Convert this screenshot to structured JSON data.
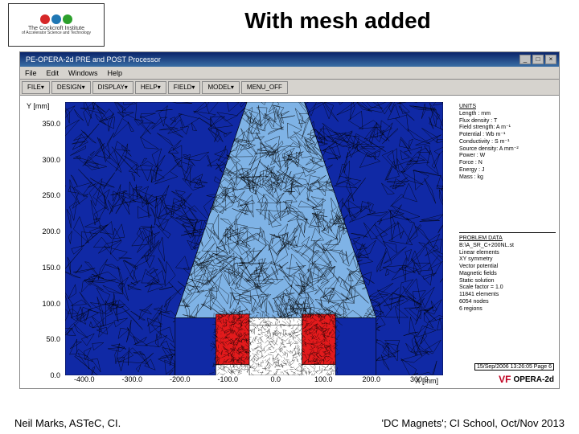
{
  "slide": {
    "title": "With mesh added",
    "footer_left": "Neil Marks, ASTeC, CI.",
    "footer_right": "'DC Magnets'; CI School, Oct/Nov 2013",
    "institute_line1": "The Cockcroft Institute",
    "institute_line2": "of Accelerator Science and Technology"
  },
  "window": {
    "title": "PE-OPERA-2d PRE and POST Processor",
    "menus": [
      "File",
      "Edit",
      "Windows",
      "Help"
    ],
    "toolbar": [
      "FILE▾",
      "DESIGN▾",
      "DISPLAY▾",
      "HELP▾",
      "FIELD▾",
      "MODEL▾",
      "MENU_OFF"
    ],
    "win_buttons": [
      "_",
      "□",
      "×"
    ]
  },
  "axes": {
    "y_label": "Y [mm]",
    "x_label": "X [mm]",
    "y_ticks": [
      "350.0",
      "300.0",
      "250.0",
      "200.0",
      "150.0",
      "100.0",
      "50.0",
      "0.0"
    ],
    "x_ticks": [
      "-400.0",
      "-300.0",
      "-200.0",
      "-100.0",
      "0.0",
      "100.0",
      "200.0",
      "300.0"
    ],
    "ylim": [
      0,
      380
    ],
    "xlim": [
      -440,
      350
    ]
  },
  "units": {
    "header": "UNITS",
    "rows": [
      "Length      : mm",
      "Flux density : T",
      "Field strength: A m⁻¹",
      "Potential   : Wb m⁻¹",
      "Conductivity : S m⁻¹",
      "Source density: A mm⁻²",
      "Power       : W",
      "Force       : N",
      "Energy      : J",
      "Mass        : kg"
    ]
  },
  "problem": {
    "header": "PROBLEM DATA",
    "rows": [
      "B:\\A_SR_C+200NL.st",
      "Linear elements",
      "XY symmetry",
      "Vector potential",
      "Magnetic fields",
      "Static solution",
      "Scale factor = 1.0",
      "11841 elements",
      "6054 nodes",
      "6 regions"
    ]
  },
  "stamp": "15/Sep/2006 13:26:05 Page 6",
  "opera": "OPERA-2d",
  "mesh": {
    "background": "#ffffff",
    "air_inside_yoke_fill": "#7fb3e6",
    "yoke_fill": "#1029a5",
    "coil_fill": "#e31a1c",
    "mesh_line_color": "#000000",
    "mesh_line_width": 0.4,
    "yoke_outer": [
      [
        -440,
        380
      ],
      [
        350,
        380
      ],
      [
        350,
        0
      ],
      [
        210,
        0
      ],
      [
        210,
        80
      ],
      [
        60,
        380
      ],
      [
        -60,
        380
      ],
      [
        -210,
        80
      ],
      [
        -210,
        0
      ],
      [
        -440,
        0
      ]
    ],
    "air_poly": [
      [
        -60,
        380
      ],
      [
        60,
        380
      ],
      [
        210,
        80
      ],
      [
        -210,
        80
      ]
    ],
    "pole_left": [
      [
        -210,
        80
      ],
      [
        -125,
        80
      ],
      [
        -125,
        0
      ],
      [
        -210,
        0
      ]
    ],
    "pole_right": [
      [
        125,
        80
      ],
      [
        210,
        80
      ],
      [
        210,
        0
      ],
      [
        125,
        0
      ]
    ],
    "coil_left": [
      [
        -125,
        85
      ],
      [
        -55,
        85
      ],
      [
        -55,
        15
      ],
      [
        -125,
        15
      ]
    ],
    "coil_right": [
      [
        55,
        85
      ],
      [
        125,
        85
      ],
      [
        125,
        15
      ],
      [
        55,
        15
      ]
    ],
    "gap_box": [
      [
        -55,
        70
      ],
      [
        55,
        70
      ],
      [
        55,
        0
      ],
      [
        -55,
        0
      ]
    ]
  }
}
